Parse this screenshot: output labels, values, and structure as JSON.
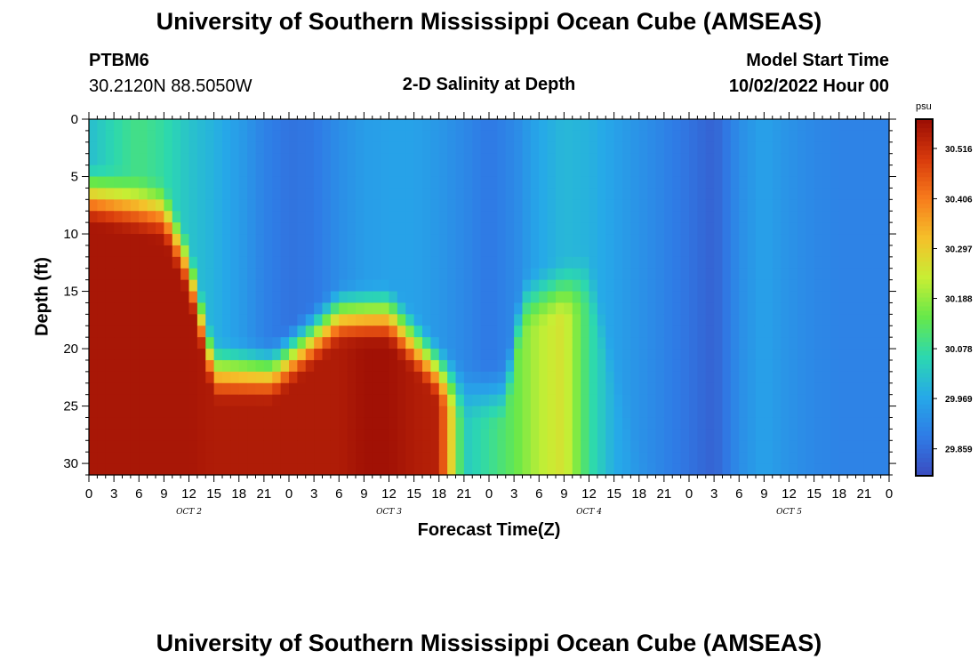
{
  "header": {
    "title": "University of Southern Mississippi Ocean Cube (AMSEAS)",
    "station_id": "PTBM6",
    "coordinates": "30.2120N  88.5050W",
    "plot_title": "2-D Salinity at Depth",
    "model_start_label": "Model Start Time",
    "model_start_value": "10/02/2022 Hour 00"
  },
  "footer": {
    "title": "University of Southern Mississippi Ocean Cube (AMSEAS)"
  },
  "chart_data": {
    "type": "heatmap",
    "title": "2-D Salinity at Depth",
    "xlabel": "Forecast Time(Z)",
    "ylabel": "Depth (ft)",
    "x_unit": "hours since 10/02/2022 00Z",
    "xlim": [
      0,
      96
    ],
    "ylim": [
      0,
      31
    ],
    "y_ticks": [
      0,
      5,
      10,
      15,
      20,
      25,
      30
    ],
    "x_tick_labels": [
      "0",
      "3",
      "6",
      "9",
      "12",
      "15",
      "18",
      "21",
      "0",
      "3",
      "6",
      "9",
      "12",
      "15",
      "18",
      "21",
      "0",
      "3",
      "6",
      "9",
      "12",
      "15",
      "18",
      "21",
      "0",
      "3",
      "6",
      "9",
      "12",
      "15",
      "18",
      "21",
      "0"
    ],
    "day_labels": [
      {
        "label": "OCT 2",
        "hour": 12
      },
      {
        "label": "OCT 3",
        "hour": 36
      },
      {
        "label": "OCT 4",
        "hour": 60
      },
      {
        "label": "OCT 5",
        "hour": 84
      }
    ],
    "colorbar": {
      "unit": "psu",
      "ticks": [
        "30.516",
        "30.406",
        "30.297",
        "30.188",
        "30.078",
        "29.969",
        "29.859"
      ],
      "min": 29.8,
      "max": 30.58,
      "colors": [
        "#3b4cc0",
        "#2f7ce6",
        "#26a9e8",
        "#2cd8b0",
        "#66e84a",
        "#c8ee34",
        "#f5c02a",
        "#f77b1c",
        "#d83a0c",
        "#9a0c04"
      ]
    },
    "hours": [
      0,
      3,
      6,
      9,
      12,
      15,
      18,
      21,
      24,
      27,
      30,
      33,
      36,
      39,
      42,
      45,
      48,
      51,
      54,
      57,
      60,
      63,
      66,
      69,
      72,
      75,
      78,
      81,
      84,
      87,
      90,
      93,
      96
    ],
    "surface_salinity": [
      30.01,
      30.06,
      30.1,
      30.07,
      30.02,
      29.99,
      29.95,
      29.9,
      29.87,
      29.88,
      29.92,
      29.95,
      29.96,
      29.96,
      29.94,
      29.91,
      29.88,
      29.91,
      29.97,
      30.0,
      29.99,
      29.96,
      29.93,
      29.9,
      29.87,
      29.84,
      29.92,
      29.96,
      29.93,
      29.91,
      29.9,
      29.9,
      29.9
    ],
    "bottom_salinity": [
      30.56,
      30.56,
      30.56,
      30.56,
      30.56,
      30.55,
      30.55,
      30.55,
      30.55,
      30.55,
      30.55,
      30.57,
      30.57,
      30.55,
      30.54,
      30.03,
      30.08,
      30.14,
      30.22,
      30.26,
      30.08,
      29.98,
      29.94,
      29.9,
      29.87,
      29.84,
      29.92,
      29.96,
      29.93,
      29.91,
      29.9,
      29.9,
      29.9
    ]
  }
}
